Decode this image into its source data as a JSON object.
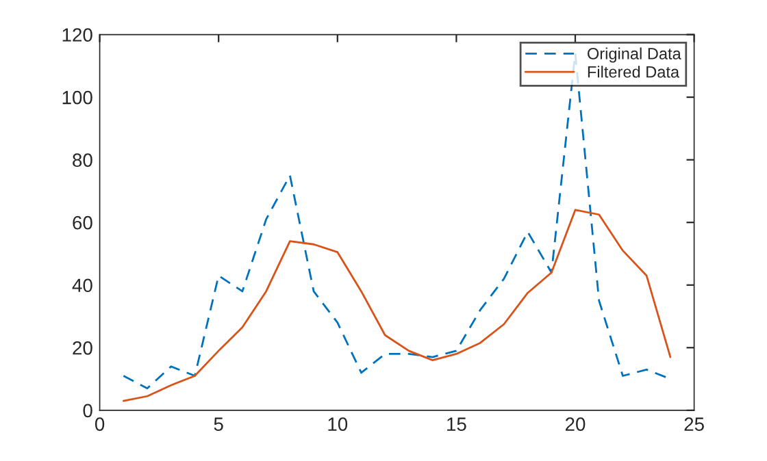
{
  "chart_data": {
    "type": "line",
    "x": [
      1,
      2,
      3,
      4,
      5,
      6,
      7,
      8,
      9,
      10,
      11,
      12,
      13,
      14,
      15,
      16,
      17,
      18,
      19,
      20,
      21,
      22,
      23,
      24
    ],
    "series": [
      {
        "name": "Original Data",
        "color": "#0072bd",
        "line_style": "dashed",
        "values": [
          11,
          7,
          14,
          11,
          43,
          38,
          61,
          75,
          38,
          28,
          12,
          18,
          18,
          17,
          19,
          32,
          42,
          57,
          44,
          114,
          35,
          11,
          13,
          10
        ]
      },
      {
        "name": "Filtered Data",
        "color": "#d95319",
        "line_style": "solid",
        "values": [
          3,
          4.5,
          8,
          11,
          19,
          26.5,
          38,
          54,
          53,
          50.5,
          38,
          24,
          19,
          16,
          18,
          21.5,
          27.5,
          37.5,
          44,
          64,
          62.5,
          51,
          43,
          17
        ]
      }
    ],
    "xlim": [
      0,
      25
    ],
    "xticks": [
      0,
      5,
      10,
      15,
      20,
      25
    ],
    "ylim": [
      0,
      120
    ],
    "yticks": [
      0,
      20,
      40,
      60,
      80,
      100,
      120
    ],
    "grid": false,
    "legend": "top right",
    "marker": "none"
  }
}
